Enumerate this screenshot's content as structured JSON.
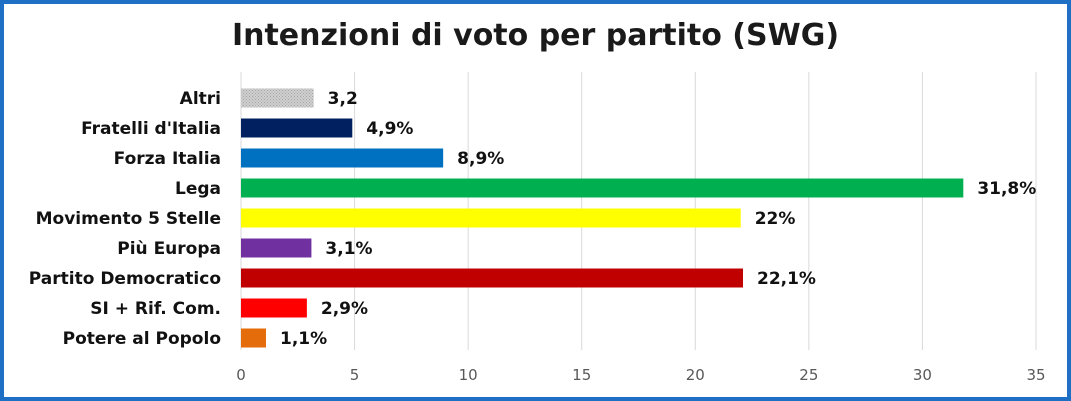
{
  "chart_data": {
    "type": "bar",
    "orientation": "horizontal",
    "title": "Intenzioni di voto per partito (SWG)",
    "xlabel": "",
    "ylabel": "",
    "xlim": [
      0,
      35
    ],
    "ticks": [
      "0",
      "5",
      "10",
      "15",
      "20",
      "25",
      "30",
      "35"
    ],
    "tick_values": [
      0,
      5,
      10,
      15,
      20,
      25,
      30,
      35
    ],
    "grid": true,
    "legend": "none",
    "categories": [
      "Altri",
      "Fratelli d'Italia",
      "Forza Italia",
      "Lega",
      "Movimento 5 Stelle",
      "Più Europa",
      "Partito Democratico",
      "SI + Rif. Com.",
      "Potere al Popolo"
    ],
    "values": [
      3.2,
      4.9,
      8.9,
      31.8,
      22,
      3.1,
      22.1,
      2.9,
      1.1
    ],
    "data_labels": [
      "3,2",
      "4,9%",
      "8,9%",
      "31,8%",
      "22%",
      "3,1%",
      "22,1%",
      "2,9%",
      "1,1%"
    ],
    "colors": [
      "#c0c0c0",
      "#002060",
      "#0070c0",
      "#00b050",
      "#ffff00",
      "#7030a0",
      "#c00000",
      "#ff0000",
      "#e46c0a"
    ],
    "patterns": [
      "dotted",
      "",
      "",
      "",
      "",
      "",
      "",
      "",
      ""
    ]
  }
}
